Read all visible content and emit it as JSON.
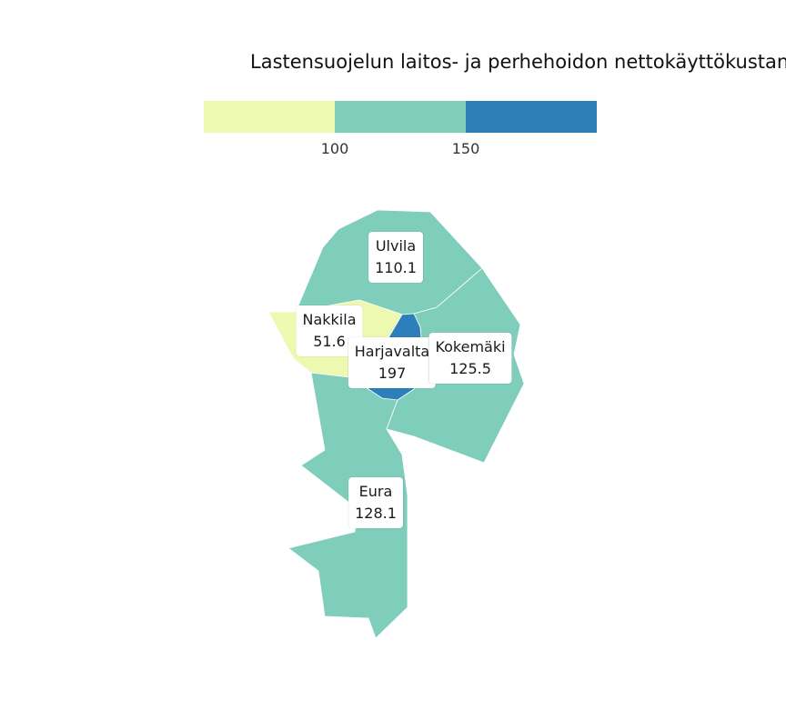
{
  "title": "Lastensuojelun laitos- ja perhehoidon nettokäyttökustan",
  "legend": {
    "colors": [
      "#edf8b1",
      "#7fcdbb",
      "#2c7fb8"
    ],
    "ticks": [
      "100",
      "150"
    ]
  },
  "regions": [
    {
      "name": "Ulvila",
      "value": "110.1",
      "color": "#7fcdbb"
    },
    {
      "name": "Nakkila",
      "value": "51.6",
      "color": "#edf8b1"
    },
    {
      "name": "Harjavalta",
      "value": "197",
      "color": "#2c7fb8"
    },
    {
      "name": "Kokemäki",
      "value": "125.5",
      "color": "#7fcdbb"
    },
    {
      "name": "Eura",
      "value": "128.1",
      "color": "#7fcdbb"
    }
  ]
}
